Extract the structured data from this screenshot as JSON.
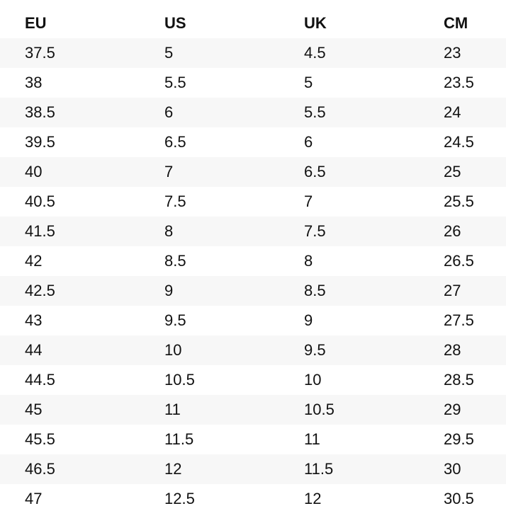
{
  "table": {
    "header": [
      "EU",
      "US",
      "UK",
      "CM"
    ],
    "rows": [
      [
        "37.5",
        "5",
        "4.5",
        "23"
      ],
      [
        "38",
        "5.5",
        "5",
        "23.5"
      ],
      [
        "38.5",
        "6",
        "5.5",
        "24"
      ],
      [
        "39.5",
        "6.5",
        "6",
        "24.5"
      ],
      [
        "40",
        "7",
        "6.5",
        "25"
      ],
      [
        "40.5",
        "7.5",
        "7",
        "25.5"
      ],
      [
        "41.5",
        "8",
        "7.5",
        "26"
      ],
      [
        "42",
        "8.5",
        "8",
        "26.5"
      ],
      [
        "42.5",
        "9",
        "8.5",
        "27"
      ],
      [
        "43",
        "9.5",
        "9",
        "27.5"
      ],
      [
        "44",
        "10",
        "9.5",
        "28"
      ],
      [
        "44.5",
        "10.5",
        "10",
        "28.5"
      ],
      [
        "45",
        "11",
        "10.5",
        "29"
      ],
      [
        "45.5",
        "11.5",
        "11",
        "29.5"
      ],
      [
        "46.5",
        "12",
        "11.5",
        "30"
      ],
      [
        "47",
        "12.5",
        "12",
        "30.5"
      ]
    ]
  }
}
